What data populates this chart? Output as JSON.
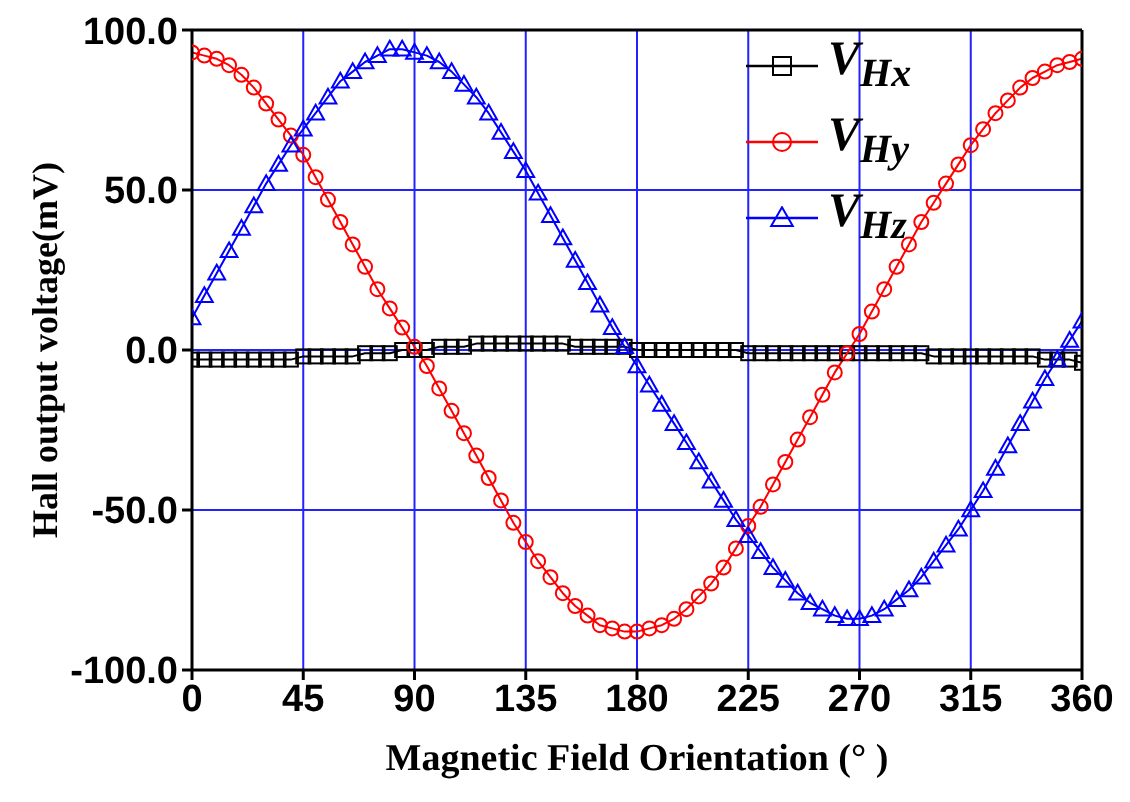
{
  "chart_data": {
    "type": "line",
    "xlabel": "Magnetic Field Orientation (° )",
    "ylabel": "Hall output voltage(mV)",
    "x": [
      0,
      5,
      10,
      15,
      20,
      25,
      30,
      35,
      40,
      45,
      50,
      55,
      60,
      65,
      70,
      75,
      80,
      85,
      90,
      95,
      100,
      105,
      110,
      115,
      120,
      125,
      130,
      135,
      140,
      145,
      150,
      155,
      160,
      165,
      170,
      175,
      180,
      185,
      190,
      195,
      200,
      205,
      210,
      215,
      220,
      225,
      230,
      235,
      240,
      245,
      250,
      255,
      260,
      265,
      270,
      275,
      280,
      285,
      290,
      295,
      300,
      305,
      310,
      315,
      320,
      325,
      330,
      335,
      340,
      345,
      350,
      355,
      360
    ],
    "series": [
      {
        "name": "V$_{Hx}$",
        "color": "#000000",
        "marker": "square",
        "values": [
          -3,
          -3,
          -3,
          -3,
          -3,
          -3,
          -3,
          -3,
          -3,
          -2,
          -2,
          -2,
          -2,
          -2,
          -1,
          -1,
          -1,
          0,
          0,
          0,
          1,
          1,
          1,
          2,
          2,
          2,
          2,
          2,
          2,
          2,
          2,
          1,
          1,
          1,
          1,
          1,
          0,
          0,
          0,
          0,
          0,
          0,
          0,
          0,
          0,
          -1,
          -1,
          -1,
          -1,
          -1,
          -1,
          -1,
          -1,
          -1,
          -1,
          -1,
          -1,
          -1,
          -1,
          -1,
          -2,
          -2,
          -2,
          -2,
          -2,
          -2,
          -2,
          -2,
          -2,
          -3,
          -3,
          -3,
          -4
        ]
      },
      {
        "name": "V$_{Hy}$",
        "color": "#ff0000",
        "marker": "circle",
        "values": [
          93,
          92,
          91,
          89,
          86,
          82,
          77,
          72,
          67,
          61,
          54,
          47,
          40,
          33,
          26,
          19,
          13,
          7,
          1,
          -5,
          -12,
          -19,
          -26,
          -33,
          -40,
          -47,
          -54,
          -60,
          -66,
          -71,
          -76,
          -80,
          -83,
          -86,
          -87,
          -88,
          -88,
          -87,
          -86,
          -84,
          -81,
          -77,
          -73,
          -68,
          -62,
          -55,
          -49,
          -42,
          -35,
          -28,
          -21,
          -14,
          -7,
          -1,
          5,
          12,
          19,
          26,
          33,
          40,
          46,
          52,
          58,
          64,
          69,
          74,
          78,
          82,
          85,
          87,
          89,
          90,
          91
        ]
      },
      {
        "name": "V$_{Hz}$",
        "color": "#0000ff",
        "marker": "triangle",
        "values": [
          10,
          17,
          24,
          31,
          38,
          45,
          52,
          58,
          64,
          69,
          74,
          79,
          84,
          87,
          90,
          92,
          94,
          94,
          93,
          92,
          90,
          87,
          83,
          79,
          74,
          68,
          62,
          56,
          49,
          42,
          35,
          28,
          21,
          14,
          7,
          1,
          -5,
          -11,
          -17,
          -23,
          -29,
          -35,
          -41,
          -47,
          -53,
          -58,
          -63,
          -68,
          -72,
          -76,
          -79,
          -81,
          -83,
          -84,
          -84,
          -83,
          -81,
          -78,
          -75,
          -71,
          -66,
          -61,
          -56,
          -50,
          -44,
          -37,
          -30,
          -23,
          -16,
          -9,
          -3,
          3,
          9
        ]
      }
    ],
    "xlim": [
      0,
      360
    ],
    "xticks": [
      0,
      45,
      90,
      135,
      180,
      225,
      270,
      315,
      360
    ],
    "ylim": [
      -100,
      100
    ],
    "yticks": [
      {
        "value": -100,
        "label": "-100.0"
      },
      {
        "value": -50,
        "label": "-50.0"
      },
      {
        "value": 0,
        "label": "0.0"
      },
      {
        "value": 50,
        "label": "50.0"
      },
      {
        "value": 100,
        "label": "100.0"
      }
    ],
    "grid": true,
    "legend": "top right"
  }
}
